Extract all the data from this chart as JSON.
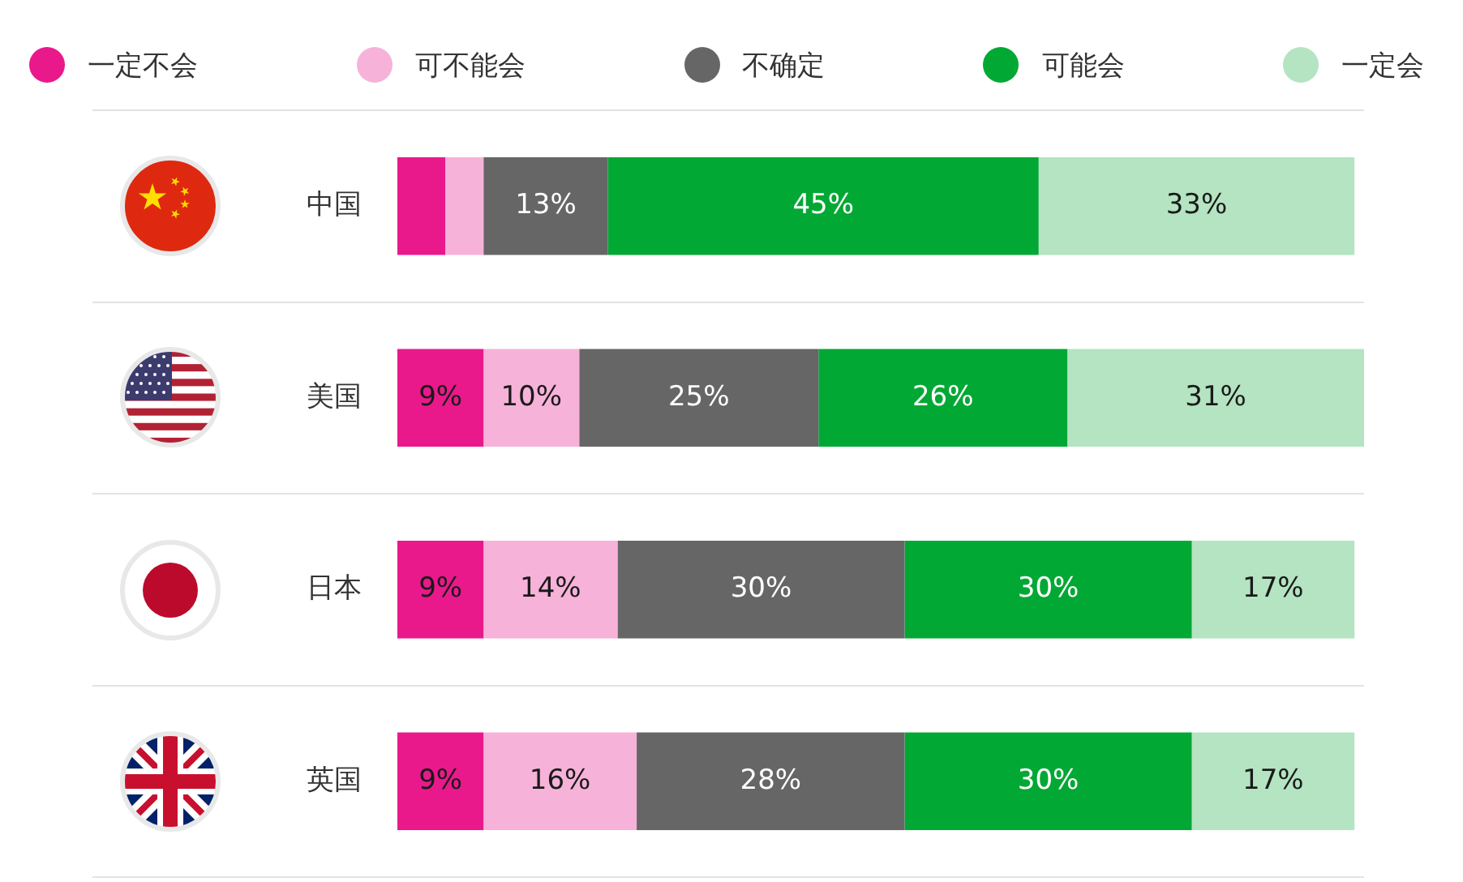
{
  "chart_data": {
    "type": "bar",
    "orientation": "horizontal",
    "stacked": true,
    "legend": "top",
    "grid": "y",
    "tick_labels": "y",
    "categories": [
      "中国",
      "美国",
      "日本",
      "英国"
    ],
    "series": [
      {
        "name": "一定不会",
        "color": "#e9198c",
        "values": [
          5,
          9,
          9,
          9
        ],
        "value_labels": [
          null,
          "9%",
          "9%",
          "9%"
        ]
      },
      {
        "name": "可不能会",
        "color": "#f7b2d9",
        "values": [
          4,
          10,
          14,
          16
        ],
        "value_labels": [
          null,
          "10%",
          "14%",
          "16%"
        ]
      },
      {
        "name": "不确定",
        "color": "#666666",
        "values": [
          13,
          25,
          30,
          28
        ],
        "value_labels": [
          "13%",
          "25%",
          "30%",
          "28%"
        ]
      },
      {
        "name": "可能会",
        "color": "#02a834",
        "values": [
          45,
          26,
          30,
          30
        ],
        "value_labels": [
          "45%",
          "26%",
          "30%",
          "30%"
        ]
      },
      {
        "name": "一定会",
        "color": "#b4e4c2",
        "values": [
          33,
          31,
          17,
          17
        ],
        "value_labels": [
          "33%",
          "31%",
          "17%",
          "17%"
        ]
      }
    ]
  }
}
